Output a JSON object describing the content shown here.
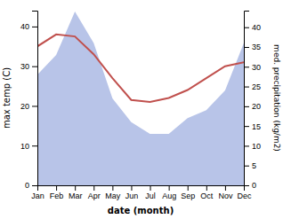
{
  "chart_data": {
    "type": "line",
    "xlabel": "date (month)",
    "ylabel": "max temp (C)",
    "y2label": "med. precipitation (kg/m2)",
    "categories": [
      "Jan",
      "Feb",
      "Mar",
      "Apr",
      "May",
      "Jun",
      "Jul",
      "Aug",
      "Sep",
      "Oct",
      "Nov",
      "Dec"
    ],
    "series": [
      {
        "type": "area",
        "axis": "y2",
        "color": "#b8c4e8",
        "values": [
          28,
          33,
          44,
          36,
          22,
          16,
          13,
          13,
          17,
          19,
          24,
          36
        ]
      },
      {
        "type": "line",
        "color": "#c0504d",
        "values": [
          35,
          38,
          37.5,
          33,
          27,
          21.5,
          21,
          22,
          24,
          27,
          30,
          31
        ]
      }
    ],
    "ylim": [
      0,
      44
    ],
    "yticks": [
      0,
      10,
      20,
      30,
      40
    ],
    "y2lim": [
      0,
      44.2
    ],
    "y2ticks": [
      0,
      5,
      10,
      15,
      20,
      25,
      30,
      35,
      40
    ],
    "grid": false
  }
}
